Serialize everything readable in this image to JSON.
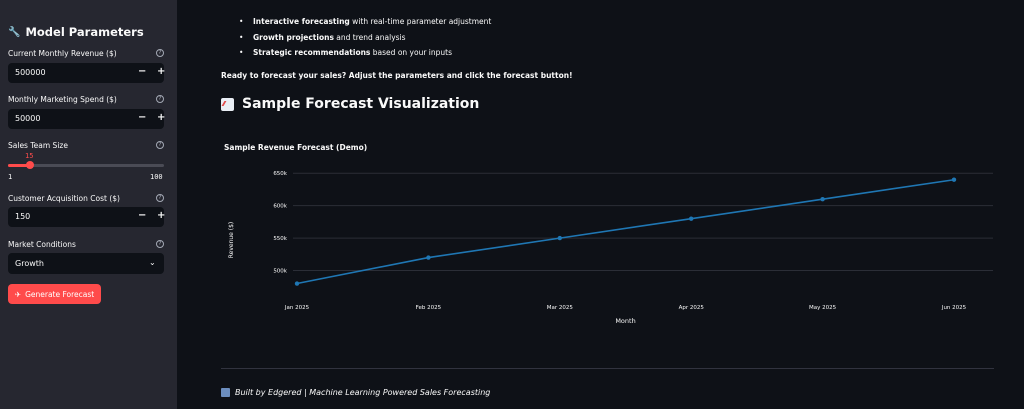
{
  "sidebar": {
    "title": "Model Parameters",
    "icon": "wrench-icon",
    "fields": {
      "revenue": {
        "label": "Current Monthly Revenue ($)",
        "value": "500000"
      },
      "marketing": {
        "label": "Monthly Marketing Spend ($)",
        "value": "50000"
      },
      "team": {
        "label": "Sales Team Size",
        "value": "15",
        "min": "1",
        "max": "100"
      },
      "cac": {
        "label": "Customer Acquisition Cost ($)",
        "value": "150"
      },
      "market": {
        "label": "Market Conditions",
        "value": "Growth"
      }
    },
    "stepper_minus": "−",
    "stepper_plus": "+",
    "help_glyph": "?",
    "button_label": "Generate Forecast",
    "accent_color": "#ff4b4b"
  },
  "main": {
    "bullets": [
      {
        "bold": "Interactive forecasting",
        "rest": " with real-time parameter adjustment"
      },
      {
        "bold": "Growth projections",
        "rest": " and trend analysis"
      },
      {
        "bold": "Strategic recommendations",
        "rest": " based on your inputs"
      }
    ],
    "ready_text": "Ready to forecast your sales? Adjust the parameters and click the forecast button!",
    "section_title": "Sample Forecast Visualization",
    "chart_title": "Sample Revenue Forecast (Demo)",
    "footer": "Built by Edgered | Machine Learning Powered Sales Forecasting"
  },
  "chart_data": {
    "type": "line",
    "title": "Sample Revenue Forecast (Demo)",
    "xlabel": "Month",
    "ylabel": "Revenue ($)",
    "categories": [
      "Jan 2025",
      "Feb 2025",
      "Mar 2025",
      "Apr 2025",
      "May 2025",
      "Jun 2025"
    ],
    "series": [
      {
        "values": [
          480000,
          520000,
          550000,
          580000,
          610000,
          640000
        ]
      }
    ],
    "yticks": [
      "500k",
      "550k",
      "600k",
      "650k"
    ],
    "ytick_values": [
      500000,
      550000,
      600000,
      650000
    ],
    "ylim": [
      470000,
      655000
    ],
    "grid": true,
    "line_color": "#1f77b4"
  }
}
